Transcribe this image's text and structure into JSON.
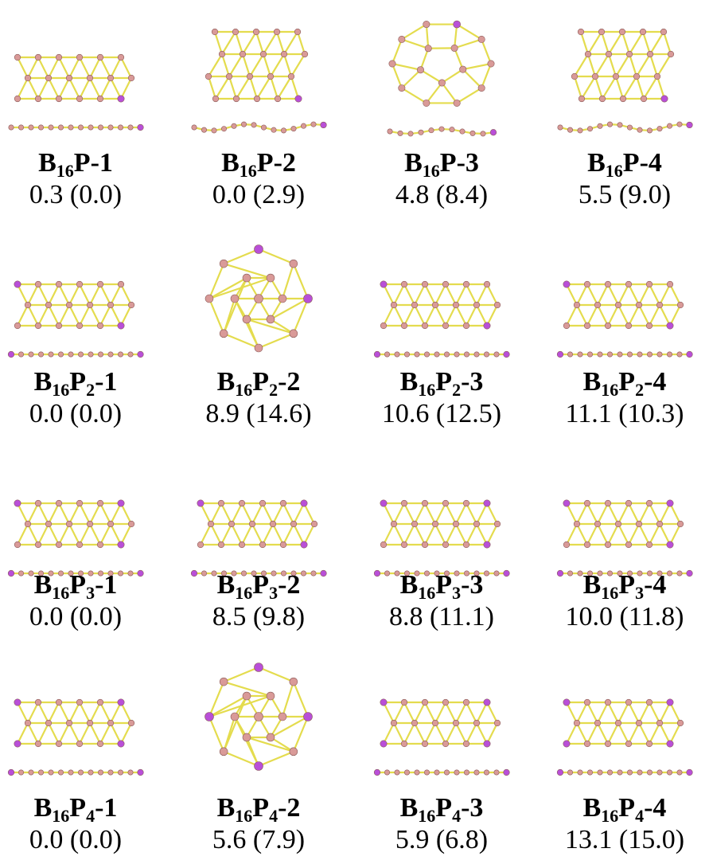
{
  "figure": {
    "rows": [
      {
        "cells": [
          {
            "base": "B",
            "b_sub": "16",
            "mid": "P",
            "p_sub": "",
            "suffix": "-1",
            "energy": "0.3 (0.0)",
            "pattern": "sheet"
          },
          {
            "base": "B",
            "b_sub": "16",
            "mid": "P",
            "p_sub": "",
            "suffix": "-2",
            "energy": "0.0 (2.9)",
            "pattern": "bowl"
          },
          {
            "base": "B",
            "b_sub": "16",
            "mid": "P",
            "p_sub": "",
            "suffix": "-3",
            "energy": "4.8 (8.4)",
            "pattern": "ring"
          },
          {
            "base": "B",
            "b_sub": "16",
            "mid": "P",
            "p_sub": "",
            "suffix": "-4",
            "energy": "5.5 (9.0)",
            "pattern": "bowl"
          }
        ]
      },
      {
        "cells": [
          {
            "base": "B",
            "b_sub": "16",
            "mid": "P",
            "p_sub": "2",
            "suffix": "-1",
            "energy": "0.0 (0.0)",
            "pattern": "sheet"
          },
          {
            "base": "B",
            "b_sub": "16",
            "mid": "P",
            "p_sub": "2",
            "suffix": "-2",
            "energy": "8.9 (14.6)",
            "pattern": "cage"
          },
          {
            "base": "B",
            "b_sub": "16",
            "mid": "P",
            "p_sub": "2",
            "suffix": "-3",
            "energy": "10.6 (12.5)",
            "pattern": "sheet"
          },
          {
            "base": "B",
            "b_sub": "16",
            "mid": "P",
            "p_sub": "2",
            "suffix": "-4",
            "energy": "11.1 (10.3)",
            "pattern": "sheet"
          }
        ]
      },
      {
        "cells": [
          {
            "base": "B",
            "b_sub": "16",
            "mid": "P",
            "p_sub": "3",
            "suffix": "-1",
            "energy": "0.0 (0.0)",
            "pattern": "sheet"
          },
          {
            "base": "B",
            "b_sub": "16",
            "mid": "P",
            "p_sub": "3",
            "suffix": "-2",
            "energy": "8.5 (9.8)",
            "pattern": "sheet"
          },
          {
            "base": "B",
            "b_sub": "16",
            "mid": "P",
            "p_sub": "3",
            "suffix": "-3",
            "energy": "8.8 (11.1)",
            "pattern": "sheet"
          },
          {
            "base": "B",
            "b_sub": "16",
            "mid": "P",
            "p_sub": "3",
            "suffix": "-4",
            "energy": "10.0 (11.8)",
            "pattern": "sheet"
          }
        ]
      },
      {
        "cells": [
          {
            "base": "B",
            "b_sub": "16",
            "mid": "P",
            "p_sub": "4",
            "suffix": "-1",
            "energy": "0.0 (0.0)",
            "pattern": "sheet"
          },
          {
            "base": "B",
            "b_sub": "16",
            "mid": "P",
            "p_sub": "4",
            "suffix": "-2",
            "energy": "5.6 (7.9)",
            "pattern": "cage"
          },
          {
            "base": "B",
            "b_sub": "16",
            "mid": "P",
            "p_sub": "4",
            "suffix": "-3",
            "energy": "5.9 (6.8)",
            "pattern": "sheet"
          },
          {
            "base": "B",
            "b_sub": "16",
            "mid": "P",
            "p_sub": "4",
            "suffix": "-4",
            "energy": "13.1 (15.0)",
            "pattern": "sheet"
          }
        ]
      }
    ]
  },
  "colors": {
    "boron_atom": "#d99a98",
    "phosphorus_atom": "#b94fd8",
    "bond": "#e4dc4e",
    "bond_outline": "#8a8330",
    "text": "#000000"
  }
}
